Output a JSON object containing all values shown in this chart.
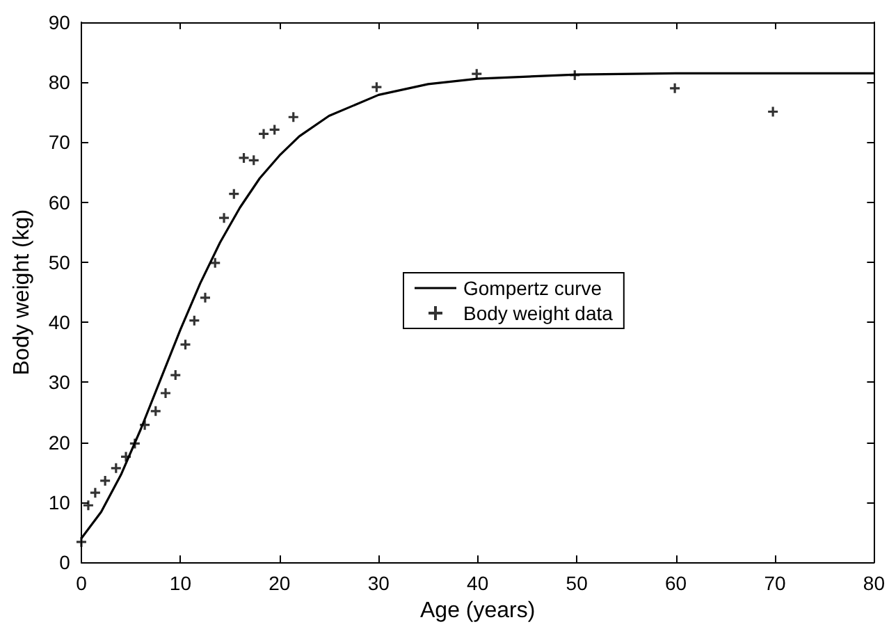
{
  "chart_data": {
    "type": "line",
    "xlabel": "Age (years)",
    "ylabel": "Body weight (kg)",
    "xlim": [
      0,
      80
    ],
    "ylim": [
      0,
      90
    ],
    "xticks": [
      0,
      10,
      20,
      30,
      40,
      50,
      60,
      70,
      80
    ],
    "yticks": [
      0,
      10,
      20,
      30,
      40,
      50,
      60,
      70,
      80,
      90
    ],
    "grid": false,
    "legend": "center",
    "series": [
      {
        "name": "Gompertz curve",
        "color": "#000000",
        "marker": "none",
        "line_style": "solid",
        "x": [
          0,
          2,
          4,
          6,
          8,
          10,
          12,
          14,
          16,
          18,
          20,
          22,
          25,
          30,
          35,
          40,
          50,
          60,
          70,
          80
        ],
        "values": [
          4.0,
          8.4,
          14.6,
          22.2,
          30.5,
          38.8,
          46.5,
          53.3,
          59.1,
          64.0,
          67.8,
          71.0,
          74.4,
          77.9,
          79.7,
          80.6,
          81.3,
          81.5,
          81.5,
          81.5
        ]
      },
      {
        "name": "Body weight data",
        "type": "scatter",
        "color": "#000000",
        "marker": "cross",
        "x": [
          0,
          0.7,
          1.4,
          2.4,
          3.5,
          4.5,
          5.4,
          6.4,
          7.5,
          8.5,
          9.5,
          10.5,
          11.4,
          12.5,
          13.5,
          14.4,
          15.4,
          16.4,
          17.4,
          18.4,
          19.5,
          21.4,
          29.8,
          39.9,
          49.8,
          59.9,
          69.8
        ],
        "values": [
          3.4,
          9.5,
          11.6,
          13.6,
          15.7,
          17.6,
          19.8,
          22.9,
          25.2,
          28.2,
          31.2,
          36.3,
          40.3,
          44.1,
          49.9,
          57.4,
          61.4,
          67.4,
          67.0,
          71.4,
          72.1,
          74.2,
          79.2,
          81.4,
          81.2,
          79.0,
          75.1
        ]
      }
    ]
  }
}
